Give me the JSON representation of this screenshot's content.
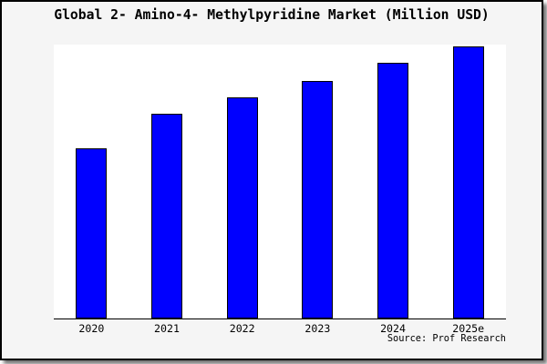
{
  "chart_data": {
    "type": "bar",
    "title": "Global 2- Amino-4- Methylpyridine Market (Million USD)",
    "categories": [
      "2020",
      "2021",
      "2022",
      "2023",
      "2024",
      "2025e"
    ],
    "values": [
      62.3,
      75.0,
      81.3,
      87.3,
      93.7,
      100.0
    ],
    "value_note": "relative scale; no y-axis ticks or values are shown in the figure",
    "ylim": [
      0,
      100.5
    ],
    "xlabel": "",
    "ylabel": "",
    "grid": false,
    "legend": "none",
    "y_axis_visible": false,
    "bar_color": "#0000ff",
    "bar_edge_color": "#000000",
    "plot_background": "#ffffff",
    "figure_background": "#f5f5f5",
    "source_label": "Source: Prof Research"
  }
}
